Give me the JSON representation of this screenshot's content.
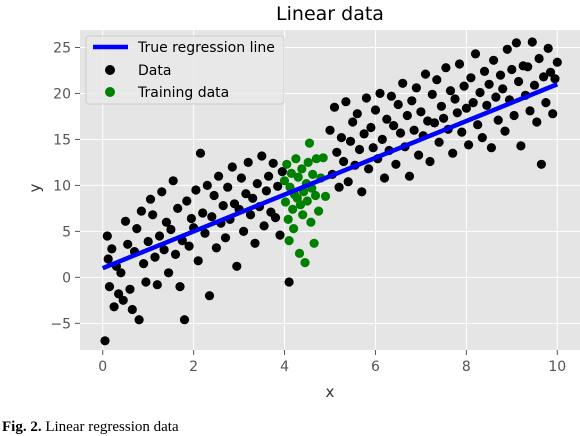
{
  "chart_data": {
    "type": "scatter",
    "title": "Linear data",
    "xlabel": "x",
    "ylabel": "y",
    "xlim": [
      -0.5,
      10.5
    ],
    "ylim": [
      -7.9,
      26.9
    ],
    "xticks": [
      0,
      2,
      4,
      6,
      8,
      10
    ],
    "yticks": [
      -5,
      0,
      5,
      10,
      15,
      20,
      25
    ],
    "xtick_labels": [
      "0",
      "2",
      "4",
      "6",
      "8",
      "10"
    ],
    "ytick_labels": [
      "−5",
      "0",
      "5",
      "10",
      "15",
      "20",
      "25"
    ],
    "grid": true,
    "legend_position": "top-left",
    "regression_line": {
      "name": "True regression line",
      "color": "#0000ff",
      "x": [
        0,
        10
      ],
      "y": [
        1.0,
        21.0
      ]
    },
    "series": [
      {
        "name": "Data",
        "color": "#000000",
        "points": [
          [
            0.05,
            -6.9
          ],
          [
            0.1,
            4.5
          ],
          [
            0.12,
            2.0
          ],
          [
            0.15,
            -1.0
          ],
          [
            0.2,
            3.1
          ],
          [
            0.25,
            -3.2
          ],
          [
            0.3,
            1.2
          ],
          [
            0.35,
            -1.8
          ],
          [
            0.4,
            0.5
          ],
          [
            0.45,
            -2.5
          ],
          [
            0.5,
            6.1
          ],
          [
            0.55,
            3.6
          ],
          [
            0.6,
            -1.3
          ],
          [
            0.65,
            -3.5
          ],
          [
            0.7,
            2.8
          ],
          [
            0.75,
            5.3
          ],
          [
            0.8,
            -4.6
          ],
          [
            0.85,
            7.2
          ],
          [
            0.9,
            1.5
          ],
          [
            0.95,
            -0.5
          ],
          [
            1.0,
            3.9
          ],
          [
            1.05,
            8.5
          ],
          [
            1.1,
            6.8
          ],
          [
            1.15,
            2.2
          ],
          [
            1.2,
            -0.8
          ],
          [
            1.25,
            4.5
          ],
          [
            1.3,
            9.3
          ],
          [
            1.35,
            3.0
          ],
          [
            1.4,
            6.0
          ],
          [
            1.45,
            0.5
          ],
          [
            1.5,
            5.2
          ],
          [
            1.55,
            10.5
          ],
          [
            1.6,
            2.5
          ],
          [
            1.65,
            7.5
          ],
          [
            1.7,
            -1.0
          ],
          [
            1.75,
            4.0
          ],
          [
            1.8,
            -4.6
          ],
          [
            1.85,
            8.3
          ],
          [
            1.9,
            3.4
          ],
          [
            1.95,
            6.4
          ],
          [
            2.0,
            5.4
          ],
          [
            2.05,
            9.5
          ],
          [
            2.1,
            1.8
          ],
          [
            2.15,
            13.5
          ],
          [
            2.2,
            7.0
          ],
          [
            2.25,
            4.8
          ],
          [
            2.3,
            10.0
          ],
          [
            2.35,
            -2.0
          ],
          [
            2.4,
            6.6
          ],
          [
            2.45,
            8.9
          ],
          [
            2.5,
            3.2
          ],
          [
            2.55,
            11.0
          ],
          [
            2.6,
            5.9
          ],
          [
            2.65,
            7.8
          ],
          [
            2.7,
            4.3
          ],
          [
            2.75,
            9.8
          ],
          [
            2.8,
            6.3
          ],
          [
            2.85,
            12.0
          ],
          [
            2.9,
            8.0
          ],
          [
            2.95,
            1.2
          ],
          [
            3.0,
            7.4
          ],
          [
            3.05,
            10.8
          ],
          [
            3.1,
            5.0
          ],
          [
            3.15,
            9.1
          ],
          [
            3.2,
            12.5
          ],
          [
            3.25,
            6.8
          ],
          [
            3.3,
            8.6
          ],
          [
            3.35,
            3.7
          ],
          [
            3.4,
            10.2
          ],
          [
            3.45,
            7.7
          ],
          [
            3.5,
            13.2
          ],
          [
            3.55,
            5.6
          ],
          [
            3.6,
            9.4
          ],
          [
            3.65,
            11.0
          ],
          [
            3.7,
            7.1
          ],
          [
            3.75,
            12.4
          ],
          [
            3.8,
            6.5
          ],
          [
            3.85,
            9.9
          ],
          [
            3.9,
            4.6
          ],
          [
            3.95,
            11.5
          ],
          [
            5.0,
            16.0
          ],
          [
            5.05,
            11.2
          ],
          [
            5.1,
            18.5
          ],
          [
            5.15,
            13.6
          ],
          [
            5.2,
            9.8
          ],
          [
            5.25,
            15.2
          ],
          [
            5.3,
            12.6
          ],
          [
            5.35,
            19.1
          ],
          [
            5.4,
            10.4
          ],
          [
            5.45,
            14.8
          ],
          [
            5.5,
            16.9
          ],
          [
            5.55,
            12.2
          ],
          [
            5.6,
            17.8
          ],
          [
            5.65,
            13.9
          ],
          [
            5.7,
            9.3
          ],
          [
            5.75,
            15.6
          ],
          [
            5.8,
            19.5
          ],
          [
            5.85,
            11.8
          ],
          [
            5.9,
            16.3
          ],
          [
            5.95,
            14.1
          ],
          [
            6.0,
            18.2
          ],
          [
            6.05,
            12.9
          ],
          [
            6.1,
            20.0
          ],
          [
            6.15,
            15.0
          ],
          [
            6.2,
            10.8
          ],
          [
            6.25,
            17.2
          ],
          [
            6.3,
            13.8
          ],
          [
            6.35,
            19.7
          ],
          [
            6.4,
            16.5
          ],
          [
            6.45,
            12.3
          ],
          [
            6.5,
            18.8
          ],
          [
            6.55,
            15.7
          ],
          [
            6.6,
            21.1
          ],
          [
            6.65,
            14.2
          ],
          [
            6.7,
            17.6
          ],
          [
            6.75,
            11.0
          ],
          [
            6.8,
            19.2
          ],
          [
            6.85,
            16.0
          ],
          [
            6.9,
            20.6
          ],
          [
            6.95,
            13.3
          ],
          [
            7.0,
            18.0
          ],
          [
            7.05,
            15.4
          ],
          [
            7.1,
            22.1
          ],
          [
            7.15,
            17.0
          ],
          [
            7.2,
            12.6
          ],
          [
            7.25,
            19.9
          ],
          [
            7.3,
            16.8
          ],
          [
            7.35,
            21.5
          ],
          [
            7.4,
            14.7
          ],
          [
            7.45,
            18.6
          ],
          [
            7.5,
            17.3
          ],
          [
            7.55,
            22.8
          ],
          [
            7.6,
            16.1
          ],
          [
            7.65,
            20.3
          ],
          [
            7.7,
            13.5
          ],
          [
            7.75,
            19.4
          ],
          [
            7.8,
            17.9
          ],
          [
            7.85,
            23.2
          ],
          [
            7.9,
            15.8
          ],
          [
            7.95,
            20.8
          ],
          [
            8.0,
            18.4
          ],
          [
            8.05,
            14.4
          ],
          [
            8.1,
            21.7
          ],
          [
            8.15,
            19.0
          ],
          [
            8.2,
            24.3
          ],
          [
            8.25,
            16.6
          ],
          [
            8.3,
            20.1
          ],
          [
            8.35,
            15.2
          ],
          [
            8.4,
            22.4
          ],
          [
            8.45,
            18.7
          ],
          [
            8.5,
            21.0
          ],
          [
            8.55,
            14.1
          ],
          [
            8.6,
            23.6
          ],
          [
            8.65,
            19.6
          ],
          [
            8.7,
            17.1
          ],
          [
            8.75,
            22.0
          ],
          [
            8.8,
            20.5
          ],
          [
            8.85,
            15.9
          ],
          [
            8.9,
            24.8
          ],
          [
            8.95,
            19.3
          ],
          [
            9.0,
            22.6
          ],
          [
            9.05,
            17.6
          ],
          [
            9.1,
            25.5
          ],
          [
            9.15,
            21.3
          ],
          [
            9.2,
            14.3
          ],
          [
            9.25,
            23.0
          ],
          [
            9.3,
            19.8
          ],
          [
            9.35,
            22.9
          ],
          [
            9.4,
            18.1
          ],
          [
            9.45,
            25.6
          ],
          [
            9.5,
            20.9
          ],
          [
            9.55,
            16.9
          ],
          [
            9.6,
            23.8
          ],
          [
            9.65,
            12.3
          ],
          [
            9.7,
            21.8
          ],
          [
            9.75,
            19.0
          ],
          [
            9.8,
            24.9
          ],
          [
            9.85,
            22.3
          ],
          [
            9.9,
            17.8
          ],
          [
            9.95,
            21.6
          ],
          [
            10.0,
            23.4
          ],
          [
            4.1,
            -0.5
          ]
        ]
      },
      {
        "name": "Training data",
        "color": "#008000",
        "points": [
          [
            4.0,
            10.5
          ],
          [
            4.02,
            8.2
          ],
          [
            4.05,
            12.3
          ],
          [
            4.08,
            6.3
          ],
          [
            4.1,
            4.0
          ],
          [
            4.12,
            9.8
          ],
          [
            4.15,
            11.3
          ],
          [
            4.18,
            7.4
          ],
          [
            4.2,
            5.3
          ],
          [
            4.22,
            9.0
          ],
          [
            4.25,
            12.9
          ],
          [
            4.28,
            8.6
          ],
          [
            4.3,
            10.9
          ],
          [
            4.33,
            2.6
          ],
          [
            4.35,
            7.9
          ],
          [
            4.38,
            11.8
          ],
          [
            4.4,
            6.8
          ],
          [
            4.42,
            9.3
          ],
          [
            4.45,
            1.6
          ],
          [
            4.48,
            10.2
          ],
          [
            4.5,
            8.3
          ],
          [
            4.52,
            12.5
          ],
          [
            4.55,
            14.6
          ],
          [
            4.58,
            6.0
          ],
          [
            4.6,
            9.7
          ],
          [
            4.62,
            11.2
          ],
          [
            4.65,
            3.7
          ],
          [
            4.68,
            8.9
          ],
          [
            4.7,
            12.9
          ],
          [
            4.75,
            7.2
          ],
          [
            4.8,
            10.8
          ],
          [
            4.85,
            13.0
          ],
          [
            4.9,
            8.8
          ]
        ]
      }
    ]
  },
  "caption": {
    "figure_label": "Fig. 2.",
    "text": "Linear regression data"
  }
}
